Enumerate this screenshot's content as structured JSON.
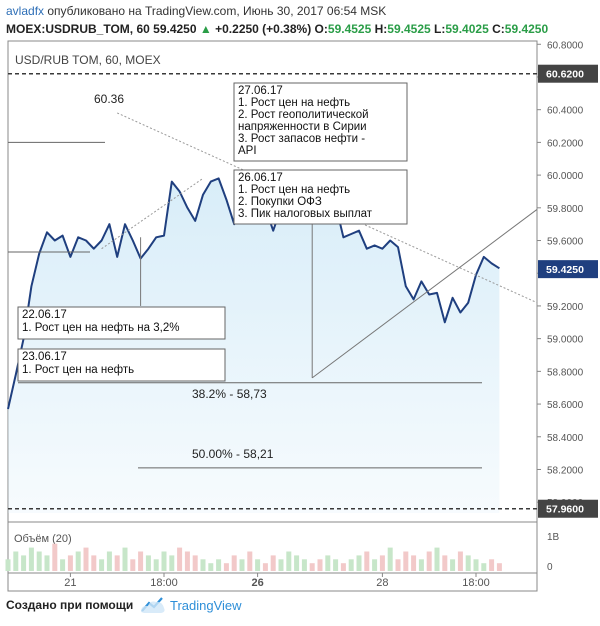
{
  "header": {
    "author": "avladfx",
    "published": "опубликовано на TradingView.com, Июнь 30, 2017 06:54 MSK",
    "symbol": "MOEX:USDRUB_TOM, 60",
    "last": "59.4250",
    "change": "+0.2250 (+0.38%)",
    "open_label": "O:",
    "open": "59.4525",
    "high_label": "H:",
    "high": "59.4525",
    "low_label": "L:",
    "low": "59.4025",
    "close_label": "C:",
    "close": "59.4250"
  },
  "footer": {
    "created": "Создано при помощи",
    "brand": "TradingView"
  },
  "chart_data": {
    "type": "line",
    "title": "USD/RUB TOM, 60, MOEX",
    "ylim": [
      57.94,
      60.82
    ],
    "y_ticks": [
      "60.8000",
      "60.6000",
      "60.4000",
      "60.2000",
      "60.0000",
      "59.8000",
      "59.6000",
      "59.4000",
      "59.2000",
      "59.0000",
      "58.8000",
      "58.6000",
      "58.4000",
      "58.2000",
      "58.0000"
    ],
    "y_tick_values": [
      60.8,
      60.6,
      60.4,
      60.2,
      60.0,
      59.8,
      59.6,
      59.4,
      59.2,
      59.0,
      58.8,
      58.6,
      58.4,
      58.2,
      58.0
    ],
    "x_ticks": [
      {
        "label": "21",
        "i": 8
      },
      {
        "label": "18:00",
        "i": 20
      },
      {
        "label": "26",
        "i": 32
      },
      {
        "label": "28",
        "i": 48
      },
      {
        "label": "18:00",
        "i": 60
      }
    ],
    "n": 64,
    "series": [
      {
        "values": [
          58.57,
          58.78,
          59.0,
          59.32,
          59.52,
          59.65,
          59.6,
          59.63,
          59.5,
          59.62,
          59.6,
          59.55,
          59.6,
          59.7,
          59.5,
          59.7,
          59.6,
          59.49,
          59.55,
          59.62,
          59.63,
          59.96,
          59.9,
          59.8,
          59.72,
          59.88,
          59.96,
          59.98,
          59.85,
          59.7,
          59.78,
          59.76,
          59.85,
          59.8,
          59.66,
          59.8,
          59.92,
          59.93,
          59.96,
          59.82,
          59.72,
          59.78,
          59.82,
          59.62,
          59.64,
          59.66,
          59.55,
          59.57,
          59.55,
          59.6,
          59.56,
          59.32,
          59.24,
          59.35,
          59.27,
          59.28,
          59.1,
          59.25,
          59.16,
          59.22,
          59.39,
          59.5,
          59.46,
          59.43
        ]
      }
    ],
    "last_value": 59.425,
    "price_labels": [
      {
        "label": "60.6200",
        "value": 60.62
      },
      {
        "label": "59.4250",
        "value": 59.425
      },
      {
        "label": "57.9600",
        "value": 57.96
      }
    ],
    "annotations": [
      {
        "text": "60.36"
      },
      {
        "text": "38.2% - 58,73"
      },
      {
        "text": "50.00% - 58,21"
      }
    ],
    "notes": [
      {
        "lines": [
          "27.06.17",
          "1. Рост цен на нефть",
          "2. Рост геополитической",
          "напряженности в Сирии",
          "3. Рост запасов нефти -",
          "API"
        ]
      },
      {
        "lines": [
          "26.06.17",
          "1. Рост цен на нефть",
          "2. Покупки ОФЗ",
          "3. Пик налоговых выплат"
        ]
      },
      {
        "lines": [
          "22.06.17",
          "1. Рост цен на нефть на 3,2%"
        ]
      },
      {
        "lines": [
          "23.06.17",
          "1. Рост цен на нефть"
        ]
      }
    ],
    "volume": {
      "label": "Объём (20)",
      "ticks": [
        "1В",
        "0"
      ],
      "values": [
        0.3,
        0.5,
        0.4,
        0.6,
        0.5,
        0.4,
        0.7,
        0.3,
        0.4,
        0.5,
        0.6,
        0.4,
        0.3,
        0.5,
        0.4,
        0.6,
        0.3,
        0.5,
        0.4,
        0.3,
        0.5,
        0.4,
        0.6,
        0.5,
        0.4,
        0.3,
        0.2,
        0.3,
        0.2,
        0.4,
        0.3,
        0.5,
        0.3,
        0.2,
        0.4,
        0.3,
        0.5,
        0.4,
        0.3,
        0.2,
        0.3,
        0.4,
        0.3,
        0.2,
        0.3,
        0.4,
        0.5,
        0.3,
        0.4,
        0.6,
        0.3,
        0.5,
        0.4,
        0.3,
        0.5,
        0.6,
        0.4,
        0.3,
        0.5,
        0.4,
        0.3,
        0.2,
        0.3,
        0.2
      ]
    },
    "colors": {
      "line": "#1f3f7f",
      "area": "#d6ecf8",
      "up": "#2a9d47",
      "volume": "#f2c9c9",
      "volume_up": "#c7e6c9",
      "dashed": "#3a3a3a"
    }
  }
}
